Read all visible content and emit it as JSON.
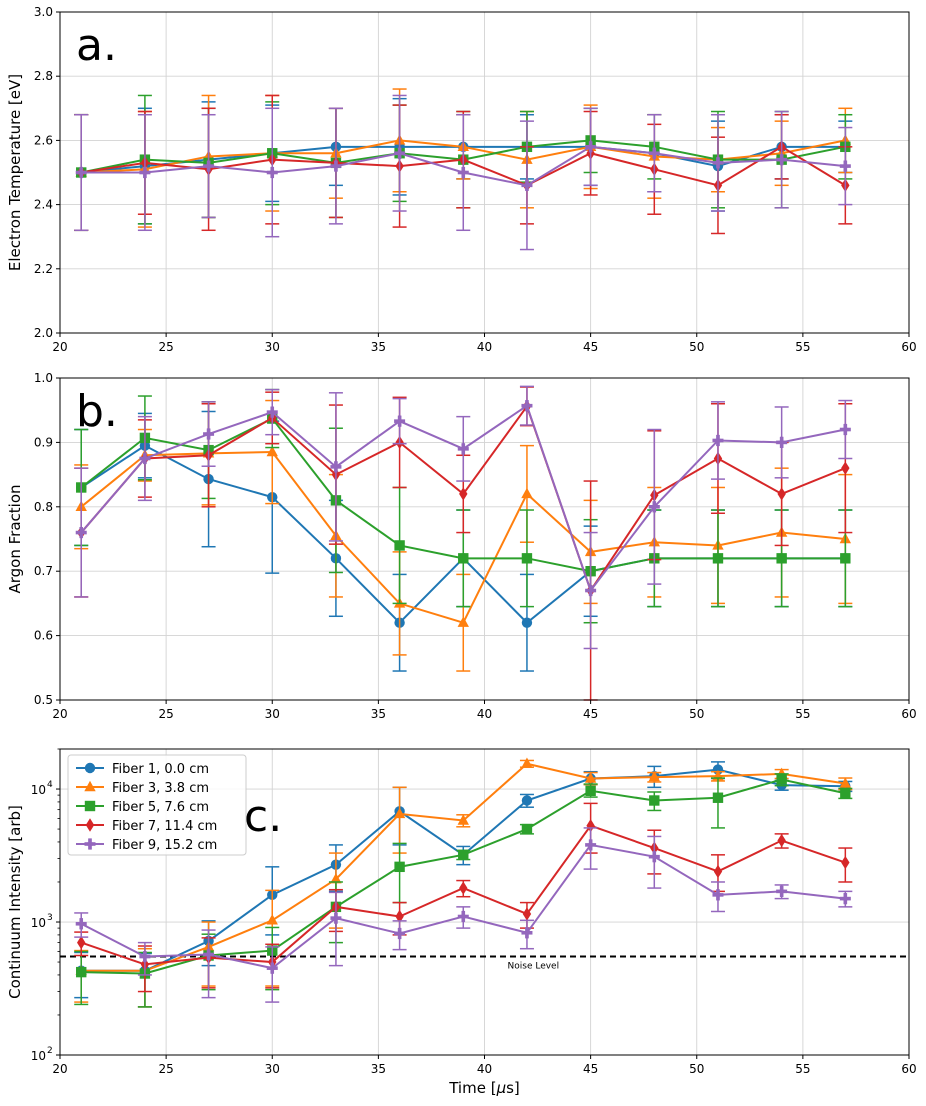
{
  "chart_data": [
    {
      "type": "line",
      "panel": "a",
      "panel_label": "a.",
      "xlabel": "",
      "ylabel": "Electron Temperature [eV]",
      "xlim": [
        20,
        60
      ],
      "ylim": [
        2.0,
        3.0
      ],
      "yscale": "linear",
      "xticks": [
        20,
        25,
        30,
        35,
        40,
        45,
        50,
        55,
        60
      ],
      "yticks": [
        2.0,
        2.2,
        2.4,
        2.6,
        2.8,
        3.0
      ],
      "ytick_labels": [
        "2.0",
        "2.2",
        "2.4",
        "2.6",
        "2.8",
        "3.0"
      ],
      "grid": true,
      "x": [
        21,
        24,
        27,
        30,
        33,
        36,
        39,
        42,
        45,
        48,
        51,
        54,
        57
      ],
      "series": [
        {
          "name": "Fiber 1, 0.0 cm",
          "values": [
            2.5,
            2.52,
            2.54,
            2.56,
            2.58,
            2.58,
            2.58,
            2.58,
            2.58,
            2.56,
            2.52,
            2.58,
            2.58
          ],
          "err": [
            0.18,
            0.18,
            0.18,
            0.15,
            0.12,
            0.15,
            0.1,
            0.1,
            0.12,
            0.12,
            0.14,
            0.1,
            0.08
          ]
        },
        {
          "name": "Fiber 3, 3.8 cm",
          "values": [
            2.5,
            2.51,
            2.55,
            2.56,
            2.56,
            2.6,
            2.58,
            2.54,
            2.58,
            2.55,
            2.54,
            2.56,
            2.6
          ],
          "err": [
            0.18,
            0.18,
            0.19,
            0.18,
            0.14,
            0.16,
            0.1,
            0.15,
            0.13,
            0.13,
            0.1,
            0.1,
            0.1
          ]
        },
        {
          "name": "Fiber 5, 7.6 cm",
          "values": [
            2.5,
            2.54,
            2.53,
            2.56,
            2.53,
            2.56,
            2.54,
            2.58,
            2.6,
            2.58,
            2.54,
            2.54,
            2.58
          ],
          "err": [
            0.18,
            0.2,
            0.17,
            0.16,
            0.17,
            0.15,
            0.15,
            0.11,
            0.1,
            0.1,
            0.15,
            0.15,
            0.1
          ]
        },
        {
          "name": "Fiber 7, 11.4 cm",
          "values": [
            2.5,
            2.53,
            2.51,
            2.54,
            2.53,
            2.52,
            2.54,
            2.46,
            2.56,
            2.51,
            2.46,
            2.58,
            2.46
          ],
          "err": [
            0.18,
            0.16,
            0.19,
            0.2,
            0.17,
            0.19,
            0.15,
            0.12,
            0.13,
            0.14,
            0.15,
            0.1,
            0.12
          ]
        },
        {
          "name": "Fiber 9, 15.2 cm",
          "values": [
            2.5,
            2.5,
            2.52,
            2.5,
            2.52,
            2.56,
            2.5,
            2.46,
            2.58,
            2.56,
            2.53,
            2.54,
            2.52
          ],
          "err": [
            0.18,
            0.18,
            0.16,
            0.2,
            0.18,
            0.18,
            0.18,
            0.2,
            0.12,
            0.12,
            0.15,
            0.15,
            0.12
          ]
        }
      ]
    },
    {
      "type": "line",
      "panel": "b",
      "panel_label": "b.",
      "xlabel": "",
      "ylabel": "Argon Fraction",
      "xlim": [
        20,
        60
      ],
      "ylim": [
        0.5,
        1.0
      ],
      "yscale": "linear",
      "xticks": [
        20,
        25,
        30,
        35,
        40,
        45,
        50,
        55,
        60
      ],
      "yticks": [
        0.5,
        0.6,
        0.7,
        0.8,
        0.9,
        1.0
      ],
      "ytick_labels": [
        "0.5",
        "0.6",
        "0.7",
        "0.8",
        "0.9",
        "1.0"
      ],
      "grid": true,
      "x": [
        21,
        24,
        27,
        30,
        33,
        36,
        39,
        42,
        45,
        48,
        51,
        54,
        57
      ],
      "series": [
        {
          "name": "Fiber 1, 0.0 cm",
          "values": [
            0.83,
            0.895,
            0.843,
            0.815,
            0.72,
            0.62,
            0.72,
            0.62,
            0.7,
            0.72,
            0.72,
            0.72,
            0.72
          ],
          "err": [
            0.09,
            0.05,
            0.105,
            0.118,
            0.09,
            0.075,
            0.075,
            0.075,
            0.07,
            0.075,
            0.075,
            0.075,
            0.075
          ]
        },
        {
          "name": "Fiber 3, 3.8 cm",
          "values": [
            0.8,
            0.88,
            0.883,
            0.885,
            0.755,
            0.65,
            0.62,
            0.82,
            0.73,
            0.745,
            0.74,
            0.76,
            0.75
          ],
          "err": [
            0.065,
            0.04,
            0.08,
            0.08,
            0.095,
            0.08,
            0.075,
            0.075,
            0.08,
            0.085,
            0.09,
            0.1,
            0.1
          ]
        },
        {
          "name": "Fiber 5, 7.6 cm",
          "values": [
            0.83,
            0.907,
            0.888,
            0.937,
            0.81,
            0.74,
            0.72,
            0.72,
            0.7,
            0.72,
            0.72,
            0.72,
            0.72
          ],
          "err": [
            0.09,
            0.065,
            0.075,
            0.045,
            0.112,
            0.09,
            0.075,
            0.075,
            0.08,
            0.075,
            0.075,
            0.075,
            0.075
          ]
        },
        {
          "name": "Fiber 7, 11.4 cm",
          "values": [
            0.76,
            0.875,
            0.88,
            0.938,
            0.85,
            0.9,
            0.82,
            0.956,
            0.67,
            0.818,
            0.875,
            0.82,
            0.86
          ],
          "err": [
            0.1,
            0.06,
            0.08,
            0.04,
            0.108,
            0.07,
            0.06,
            0.03,
            0.17,
            0.1,
            0.085,
            0.08,
            0.1
          ]
        },
        {
          "name": "Fiber 9, 15.2 cm",
          "values": [
            0.76,
            0.875,
            0.913,
            0.947,
            0.862,
            0.933,
            0.89,
            0.957,
            0.67,
            0.8,
            0.903,
            0.9,
            0.92
          ],
          "err": [
            0.1,
            0.065,
            0.05,
            0.035,
            0.115,
            0.035,
            0.05,
            0.03,
            0.09,
            0.12,
            0.06,
            0.055,
            0.045
          ]
        }
      ]
    },
    {
      "type": "line",
      "panel": "c",
      "panel_label": "c.",
      "xlabel": "Time [$\\mu$s]",
      "xlabel_prefix": "Time [",
      "xlabel_mu": "μ",
      "xlabel_suffix": "s]",
      "ylabel": "Continuum Intensity [arb]",
      "xlim": [
        20,
        60
      ],
      "ylim": [
        100,
        20000
      ],
      "yscale": "log",
      "xticks": [
        20,
        25,
        30,
        35,
        40,
        45,
        50,
        55,
        60
      ],
      "yticks": [
        100,
        1000,
        10000
      ],
      "ytick_labels": [
        "10",
        "10",
        "10"
      ],
      "ytick_exponents": [
        "2",
        "3",
        "4"
      ],
      "grid": true,
      "legend": "upper-left",
      "noise_level": {
        "value": 550,
        "label": "Noise Level"
      },
      "x": [
        21,
        24,
        27,
        30,
        33,
        36,
        39,
        42,
        45,
        48,
        51,
        54,
        57
      ],
      "series": [
        {
          "name": "Fiber 1, 0.0 cm",
          "values": [
            430,
            430,
            720,
            1600,
            2700,
            6800,
            3200,
            8200,
            12000,
            12500,
            14000,
            10700,
            10500
          ],
          "err_lo": [
            160,
            200,
            250,
            800,
            1000,
            3000,
            500,
            900,
            1200,
            2200,
            2000,
            900,
            900
          ],
          "err_hi": [
            160,
            150,
            300,
            1000,
            1100,
            3500,
            500,
            900,
            1500,
            2300,
            2000,
            900,
            900
          ]
        },
        {
          "name": "Fiber 3, 3.8 cm",
          "values": [
            430,
            430,
            650,
            1030,
            2100,
            6500,
            5800,
            15500,
            12000,
            12300,
            12500,
            13000,
            11000
          ],
          "err_lo": [
            180,
            200,
            320,
            700,
            1200,
            3200,
            600,
            900,
            1200,
            1000,
            1000,
            1000,
            1100
          ],
          "err_hi": [
            180,
            200,
            350,
            700,
            1200,
            3800,
            600,
            900,
            1300,
            1000,
            1000,
            1000,
            1100
          ]
        },
        {
          "name": "Fiber 5, 7.6 cm",
          "values": [
            420,
            410,
            560,
            610,
            1300,
            2600,
            3200,
            5000,
            9700,
            8200,
            8600,
            11800,
            9300
          ],
          "err_lo": [
            180,
            180,
            250,
            300,
            600,
            1200,
            250,
            400,
            1000,
            1300,
            3500,
            1200,
            800
          ],
          "err_hi": [
            180,
            180,
            250,
            300,
            700,
            1300,
            250,
            400,
            1200,
            1300,
            3500,
            1200,
            800
          ]
        },
        {
          "name": "Fiber 7, 11.4 cm",
          "values": [
            700,
            480,
            540,
            500,
            1300,
            1100,
            1800,
            1150,
            5300,
            3600,
            2400,
            4100,
            2800
          ],
          "err_lo": [
            140,
            180,
            220,
            180,
            450,
            300,
            250,
            250,
            2000,
            1300,
            700,
            500,
            800
          ],
          "err_hi": [
            140,
            180,
            220,
            180,
            450,
            300,
            250,
            250,
            2500,
            1300,
            800,
            500,
            800
          ]
        },
        {
          "name": "Fiber 9, 15.2 cm",
          "values": [
            970,
            550,
            570,
            450,
            1070,
            820,
            1100,
            830,
            3800,
            3100,
            1600,
            1700,
            1500
          ],
          "err_lo": [
            200,
            150,
            300,
            200,
            600,
            200,
            200,
            200,
            1300,
            1300,
            400,
            200,
            200
          ],
          "err_hi": [
            200,
            150,
            300,
            200,
            600,
            200,
            200,
            200,
            1300,
            1300,
            400,
            200,
            200
          ]
        }
      ]
    }
  ],
  "colors": {
    "fiber1": "#1f77b4",
    "fiber3": "#ff7f0e",
    "fiber5": "#2ca02c",
    "fiber7": "#d62728",
    "fiber9": "#9467bd",
    "grid": "#d3d3d3",
    "noise": "#000000"
  },
  "markers": [
    "circle",
    "triangle-up",
    "square",
    "diamond",
    "plus"
  ]
}
